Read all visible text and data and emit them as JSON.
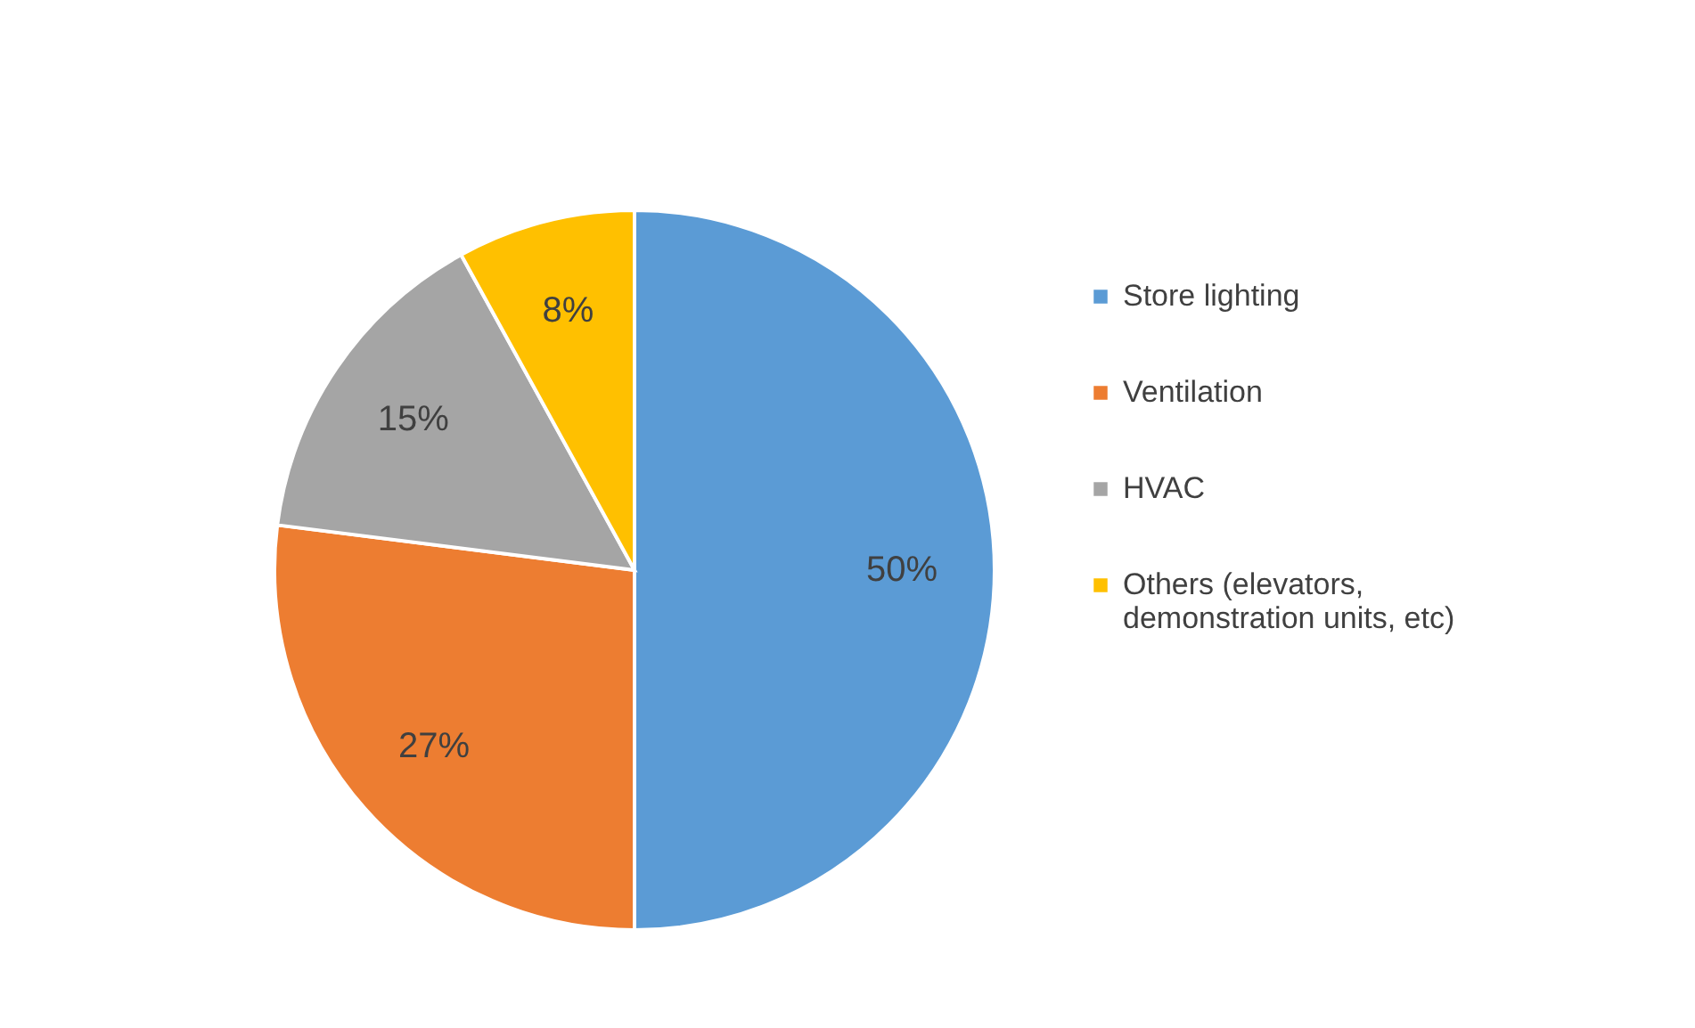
{
  "chart_data": {
    "type": "pie",
    "categories": [
      "Store lighting",
      "Ventilation",
      "HVAC",
      "Others (elevators, demonstration units, etc)"
    ],
    "values": [
      50,
      27,
      15,
      8
    ],
    "colors": [
      "#5b9bd5",
      "#ed7d31",
      "#a5a5a5",
      "#ffc000"
    ],
    "value_labels": [
      "50%",
      "27%",
      "15%",
      "8%"
    ],
    "legend": "right"
  }
}
